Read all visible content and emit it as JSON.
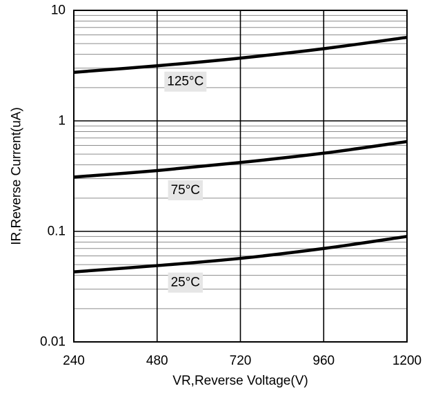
{
  "chart_data": {
    "type": "line",
    "title": "",
    "xlabel": "VR,Reverse Voltage(V)",
    "ylabel": "IR,Reverse Current(uA)",
    "xlim": [
      240,
      1200
    ],
    "ylim": [
      0.01,
      10
    ],
    "yscale": "log",
    "grid": true,
    "legend": "none",
    "xticks": [
      240,
      480,
      720,
      960,
      1200
    ],
    "xtick_labels": [
      "240",
      "480",
      "720",
      "960",
      "1200"
    ],
    "yticks": [
      0.01,
      0.1,
      1,
      10
    ],
    "ytick_labels": [
      "0.01",
      "0.1",
      "1",
      "10"
    ],
    "x": [
      240,
      480,
      720,
      960,
      1200
    ],
    "series": [
      {
        "name": "125°C",
        "values": [
          2.75,
          3.15,
          3.7,
          4.5,
          5.7
        ]
      },
      {
        "name": "75°C",
        "values": [
          0.31,
          0.355,
          0.42,
          0.51,
          0.65
        ]
      },
      {
        "name": "25°C",
        "values": [
          0.043,
          0.049,
          0.057,
          0.07,
          0.09
        ]
      }
    ],
    "line_color": "#000000"
  }
}
